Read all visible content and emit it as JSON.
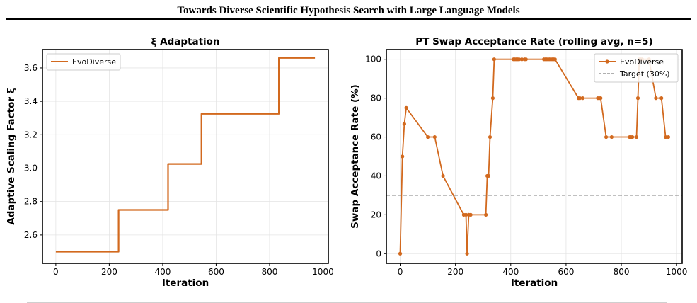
{
  "header": {
    "title": "Towards Diverse Scientific Hypothesis Search with Large Language Models"
  },
  "chart_data": [
    {
      "type": "line",
      "title": "ξ Adaptation",
      "xlabel": "Iteration",
      "ylabel": "Adaptive Scaling Factor ξ",
      "xlim": [
        -50,
        1020
      ],
      "ylim": [
        2.43,
        3.71
      ],
      "xticks": [
        0,
        200,
        400,
        600,
        800,
        1000
      ],
      "xtick_labels": [
        "0",
        "200",
        "400",
        "600",
        "800",
        "1000"
      ],
      "yticks": [
        2.6,
        2.8,
        3.0,
        3.2,
        3.4,
        3.6
      ],
      "ytick_labels": [
        "2.6",
        "2.8",
        "3.0",
        "3.2",
        "3.4",
        "3.6"
      ],
      "grid": true,
      "legend_position": "top-left",
      "step": true,
      "series": [
        {
          "name": "EvoDiverse",
          "color": "#d2691e",
          "x": [
            0,
            235,
            235,
            420,
            420,
            545,
            545,
            835,
            835,
            970
          ],
          "y": [
            2.5,
            2.5,
            2.75,
            2.75,
            3.025,
            3.025,
            3.325,
            3.325,
            3.66,
            3.66
          ]
        }
      ]
    },
    {
      "type": "line",
      "title": "PT Swap Acceptance Rate (rolling avg, n=5)",
      "xlabel": "Iteration",
      "ylabel": "Swap Acceptance Rate (%)",
      "xlim": [
        -50,
        1020
      ],
      "ylim": [
        -5,
        105
      ],
      "xticks": [
        0,
        200,
        400,
        600,
        800,
        1000
      ],
      "xtick_labels": [
        "0",
        "200",
        "400",
        "600",
        "800",
        "1000"
      ],
      "yticks": [
        0,
        20,
        40,
        60,
        80,
        100
      ],
      "ytick_labels": [
        "0",
        "20",
        "40",
        "60",
        "80",
        "100"
      ],
      "grid": true,
      "legend_position": "top-right",
      "series": [
        {
          "name": "EvoDiverse",
          "color": "#d2691e",
          "markers": true,
          "x": [
            0,
            8,
            15,
            22,
            100,
            125,
            155,
            230,
            238,
            242,
            248,
            255,
            310,
            315,
            320,
            325,
            335,
            340,
            410,
            415,
            420,
            425,
            430,
            440,
            450,
            455,
            520,
            525,
            530,
            535,
            540,
            545,
            550,
            555,
            560,
            645,
            650,
            660,
            715,
            720,
            725,
            745,
            765,
            830,
            835,
            840,
            855,
            860,
            865,
            870,
            875,
            900,
            925,
            945,
            960,
            970
          ],
          "y": [
            0,
            50,
            66.7,
            75,
            60,
            60,
            40,
            20,
            20,
            0,
            20,
            20,
            20,
            40,
            40,
            60,
            80,
            100,
            100,
            100,
            100,
            100,
            100,
            100,
            100,
            100,
            100,
            100,
            100,
            100,
            100,
            100,
            100,
            100,
            100,
            80,
            80,
            80,
            80,
            80,
            80,
            60,
            60,
            60,
            60,
            60,
            60,
            80,
            100,
            100,
            100,
            100,
            80,
            80,
            60,
            60
          ]
        },
        {
          "name": "Target (30%)",
          "color": "#808080",
          "dashed": true,
          "y_constant": 30
        }
      ]
    }
  ]
}
